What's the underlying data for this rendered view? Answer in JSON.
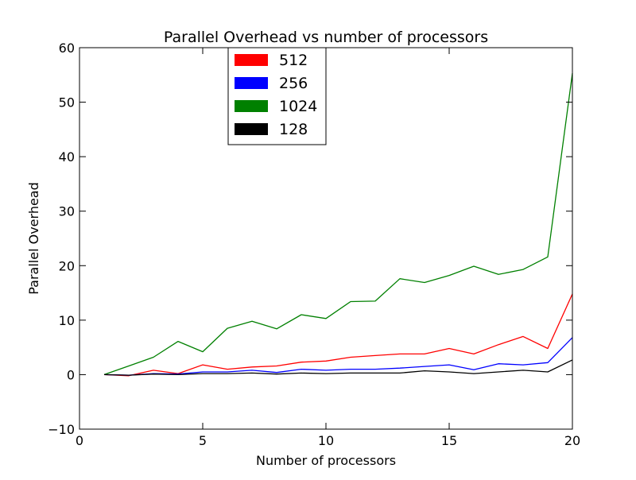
{
  "chart_data": {
    "type": "line",
    "title": "Parallel Overhead vs number of processors",
    "xlabel": "Number of processors",
    "ylabel": "Parallel Overhead",
    "xlim": [
      0,
      20
    ],
    "ylim": [
      -10,
      60
    ],
    "xticks": [
      0,
      5,
      10,
      15,
      20
    ],
    "yticks": [
      -10,
      0,
      10,
      20,
      30,
      40,
      50,
      60
    ],
    "xtick_labels": [
      "0",
      "5",
      "10",
      "15",
      "20"
    ],
    "ytick_labels": [
      "−10",
      "0",
      "10",
      "20",
      "30",
      "40",
      "50",
      "60"
    ],
    "grid": false,
    "legend_position": "top-center",
    "x": [
      1,
      2,
      3,
      4,
      5,
      6,
      7,
      8,
      9,
      10,
      11,
      12,
      13,
      14,
      15,
      16,
      17,
      18,
      19,
      20
    ],
    "series": [
      {
        "name": "512",
        "color": "#ff0000",
        "values": [
          0,
          -0.2,
          0.8,
          0.2,
          1.8,
          1.0,
          1.4,
          1.6,
          2.3,
          2.5,
          3.2,
          3.5,
          3.8,
          3.8,
          4.8,
          3.8,
          5.5,
          7.0,
          4.8,
          14.8
        ]
      },
      {
        "name": "256",
        "color": "#0000ff",
        "values": [
          0,
          -0.1,
          0.2,
          0.1,
          0.5,
          0.5,
          0.8,
          0.4,
          1.0,
          0.8,
          1.0,
          1.0,
          1.2,
          1.5,
          1.8,
          0.9,
          2.0,
          1.8,
          2.2,
          6.8
        ]
      },
      {
        "name": "1024",
        "color": "#008000",
        "values": [
          0,
          1.6,
          3.2,
          6.1,
          4.2,
          8.5,
          9.8,
          8.4,
          11.0,
          10.3,
          13.4,
          13.5,
          17.6,
          16.9,
          18.2,
          19.9,
          18.4,
          19.3,
          21.6,
          55.3
        ]
      },
      {
        "name": "128",
        "color": "#000000",
        "values": [
          0,
          -0.1,
          0.1,
          0.0,
          0.2,
          0.2,
          0.3,
          0.1,
          0.3,
          0.2,
          0.3,
          0.3,
          0.3,
          0.7,
          0.5,
          0.2,
          0.5,
          0.8,
          0.5,
          2.7
        ]
      }
    ]
  }
}
